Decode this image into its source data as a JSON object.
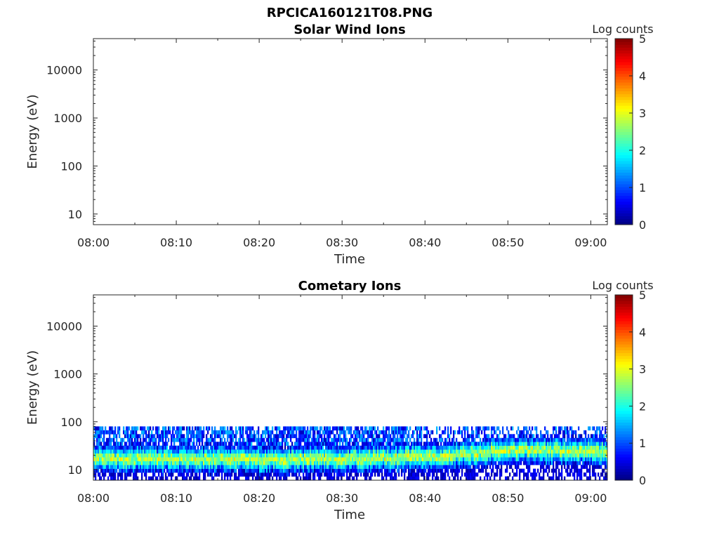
{
  "figure_title": "RPCICA160121T08.PNG",
  "chart_data": [
    {
      "type": "heatmap",
      "title": "Solar Wind Ions",
      "xlabel": "Time",
      "ylabel": "Energy (eV)",
      "x_ticks": [
        "08:00",
        "08:10",
        "08:20",
        "08:30",
        "08:40",
        "08:50",
        "09:00"
      ],
      "y_ticks": [
        "10",
        "100",
        "1000",
        "10000"
      ],
      "y_scale": "log",
      "ylim": [
        6,
        45000
      ],
      "xlim": [
        "08:00",
        "09:02"
      ],
      "colorbar": {
        "label": "Log counts",
        "ticks": [
          "0",
          "1",
          "2",
          "3",
          "4",
          "5"
        ],
        "range": [
          0,
          5
        ],
        "colormap": "jet"
      },
      "band": null
    },
    {
      "type": "heatmap",
      "title": "Cometary Ions",
      "xlabel": "Time",
      "ylabel": "Energy (eV)",
      "x_ticks": [
        "08:00",
        "08:10",
        "08:20",
        "08:30",
        "08:40",
        "08:50",
        "09:00"
      ],
      "y_ticks": [
        "10",
        "100",
        "1000",
        "10000"
      ],
      "y_scale": "log",
      "ylim": [
        6,
        45000
      ],
      "xlim": [
        "08:00",
        "09:02"
      ],
      "colorbar": {
        "label": "Log counts",
        "ticks": [
          "0",
          "1",
          "2",
          "3",
          "4",
          "5"
        ],
        "range": [
          0,
          5
        ],
        "colormap": "jet"
      },
      "band": {
        "energy_min_eV": 6,
        "energy_max_eV": 80,
        "peak_energy_eV": [
          17,
          17,
          16,
          17,
          18,
          22,
          26,
          24
        ],
        "peak_time": [
          "08:00",
          "08:10",
          "08:20",
          "08:30",
          "08:40",
          "08:45",
          "08:50",
          "09:00"
        ],
        "peak_log_counts": 3
      }
    }
  ]
}
